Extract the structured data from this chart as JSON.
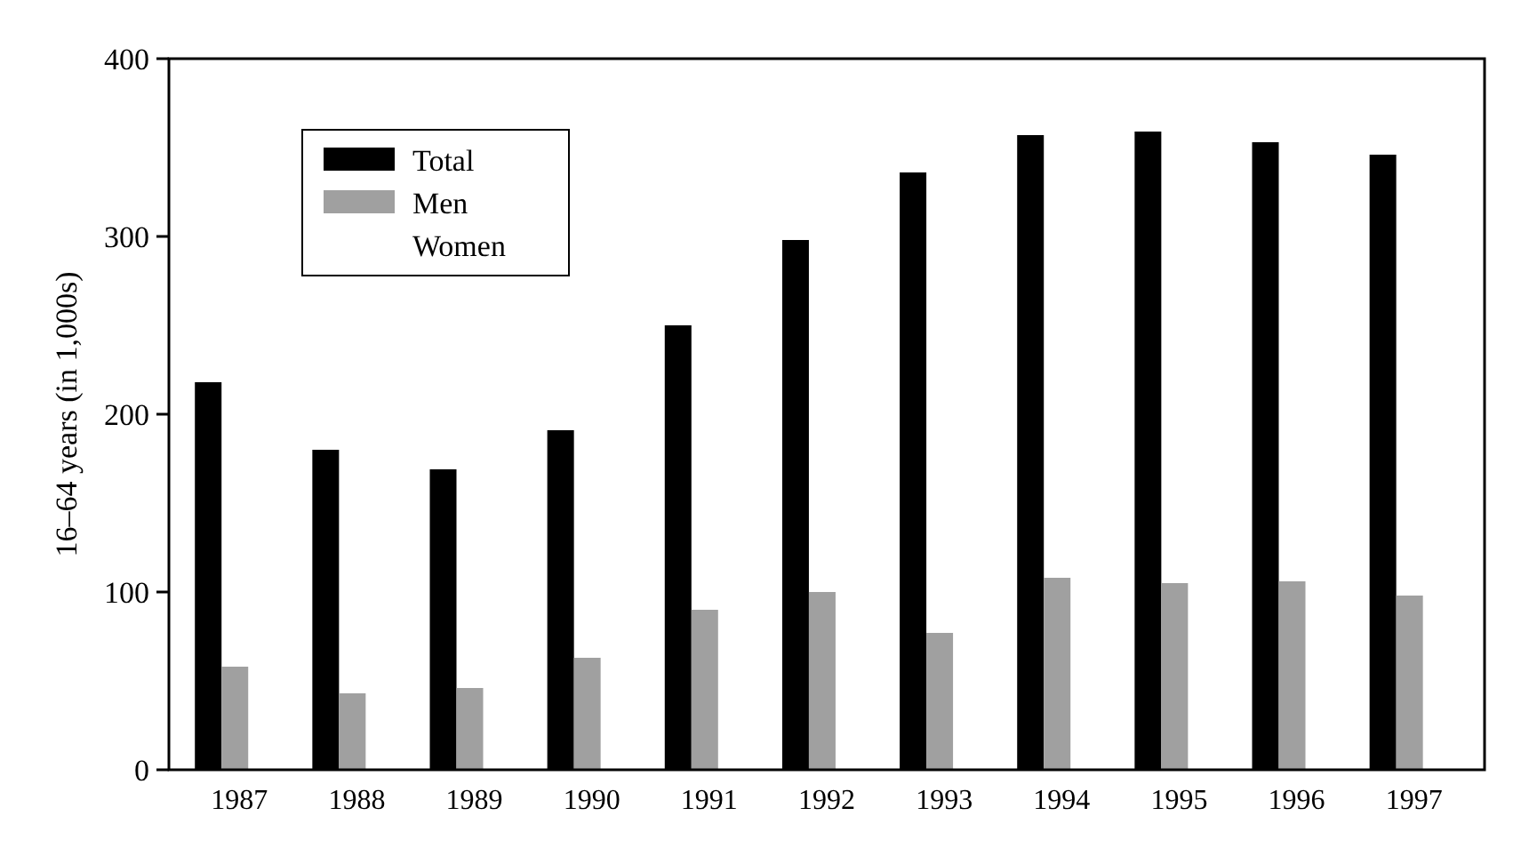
{
  "chart_data": {
    "type": "bar",
    "ylabel": "16–64 years (in 1,000s)",
    "categories": [
      "1987",
      "1988",
      "1989",
      "1990",
      "1991",
      "1992",
      "1993",
      "1994",
      "1995",
      "1996",
      "1997"
    ],
    "series": [
      {
        "name": "Total",
        "color": "#000000",
        "values": [
          218,
          180,
          169,
          191,
          250,
          298,
          336,
          357,
          359,
          353,
          346
        ]
      },
      {
        "name": "Men",
        "color": "#a0a0a0",
        "values": [
          58,
          43,
          46,
          63,
          90,
          100,
          77,
          108,
          105,
          106,
          98
        ]
      },
      {
        "name": "Women",
        "values": [
          null,
          null,
          null,
          null,
          null,
          null,
          null,
          null,
          null,
          null,
          null
        ]
      }
    ],
    "ylim": [
      0,
      400
    ],
    "yticks": [
      0,
      100,
      200,
      300,
      400
    ],
    "grid": false,
    "legend": "top left"
  }
}
